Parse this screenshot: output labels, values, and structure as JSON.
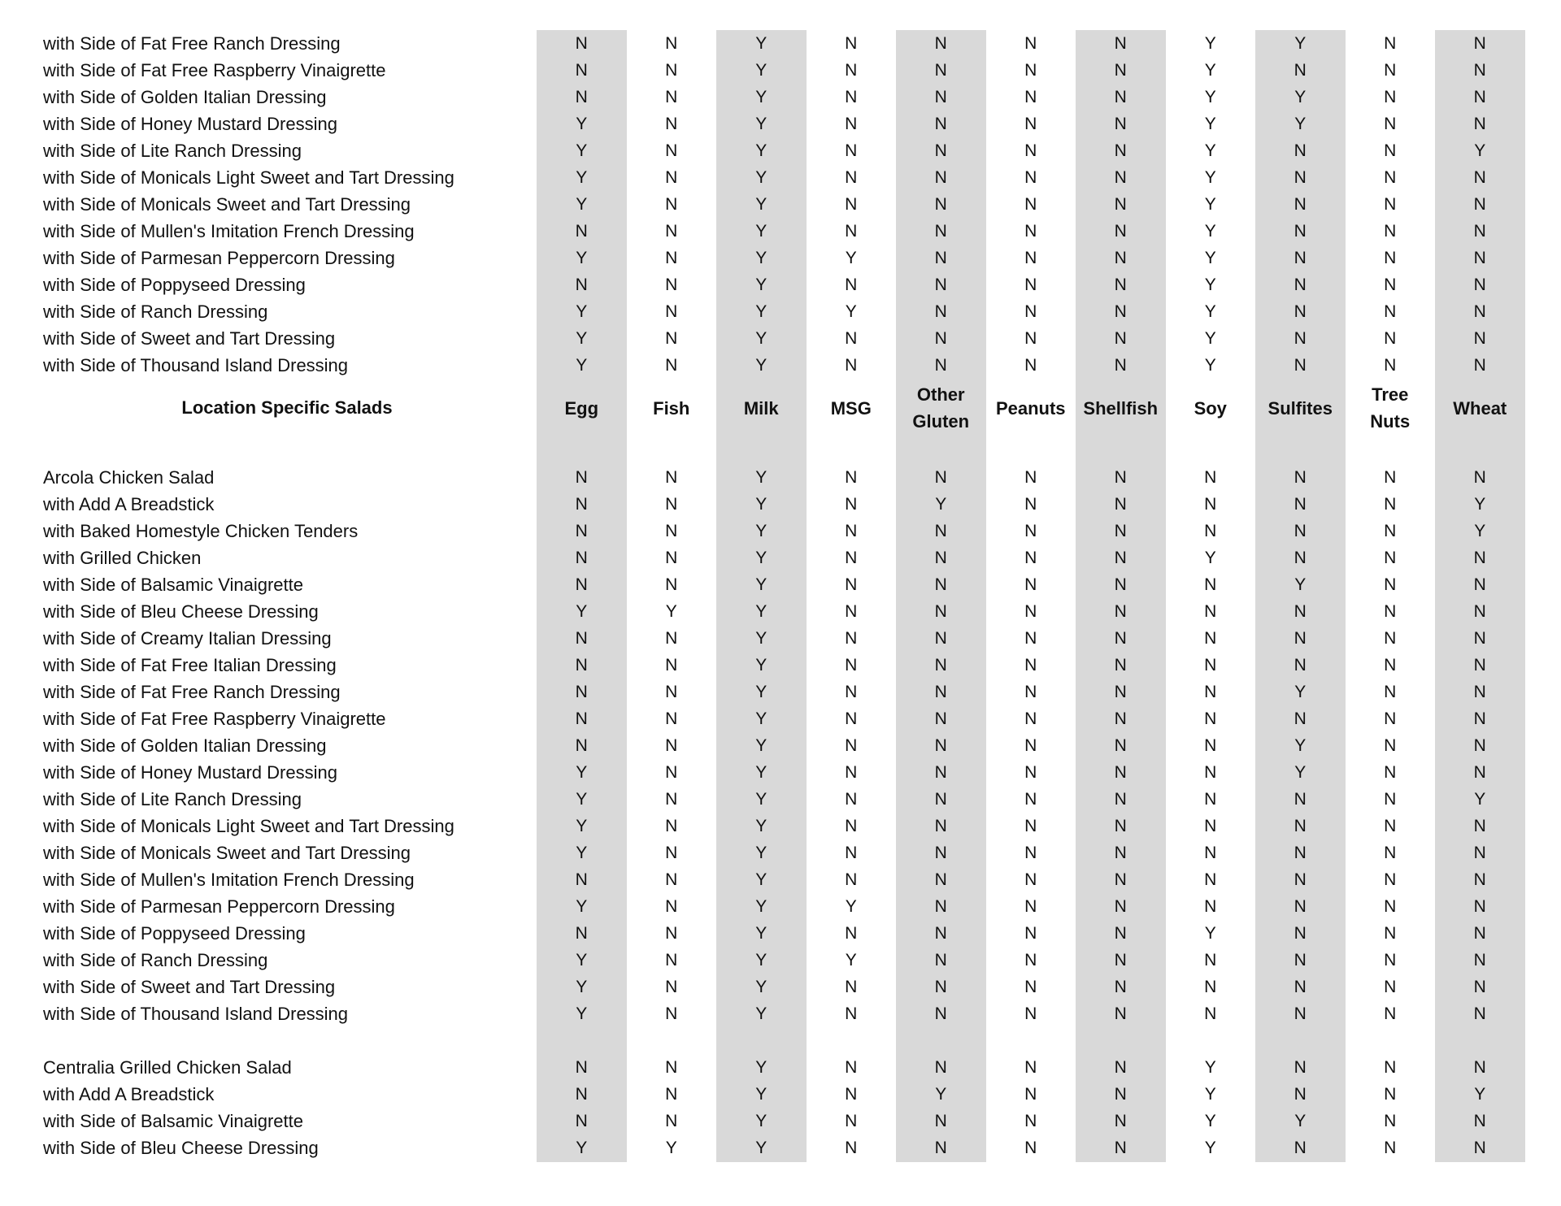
{
  "shaded_color": "#d9d9d9",
  "columns": [
    "Egg",
    "Fish",
    "Milk",
    "MSG",
    "Other\nGluten",
    "Peanuts",
    "Shellfish",
    "Soy",
    "Sulfites",
    "Tree\nNuts",
    "Wheat"
  ],
  "rows": [
    {
      "label": "with Side of Fat Free Ranch Dressing",
      "vals": [
        "N",
        "N",
        "Y",
        "N",
        "N",
        "N",
        "N",
        "Y",
        "Y",
        "N",
        "N"
      ]
    },
    {
      "label": "with Side of Fat Free Raspberry Vinaigrette",
      "vals": [
        "N",
        "N",
        "Y",
        "N",
        "N",
        "N",
        "N",
        "Y",
        "N",
        "N",
        "N"
      ]
    },
    {
      "label": "with Side of Golden Italian Dressing",
      "vals": [
        "N",
        "N",
        "Y",
        "N",
        "N",
        "N",
        "N",
        "Y",
        "Y",
        "N",
        "N"
      ]
    },
    {
      "label": "with Side of Honey Mustard Dressing",
      "vals": [
        "Y",
        "N",
        "Y",
        "N",
        "N",
        "N",
        "N",
        "Y",
        "Y",
        "N",
        "N"
      ]
    },
    {
      "label": "with Side of Lite Ranch Dressing",
      "vals": [
        "Y",
        "N",
        "Y",
        "N",
        "N",
        "N",
        "N",
        "Y",
        "N",
        "N",
        "Y"
      ]
    },
    {
      "label": "with Side of Monicals Light Sweet and Tart Dressing",
      "vals": [
        "Y",
        "N",
        "Y",
        "N",
        "N",
        "N",
        "N",
        "Y",
        "N",
        "N",
        "N"
      ]
    },
    {
      "label": "with Side of Monicals Sweet and Tart Dressing",
      "vals": [
        "Y",
        "N",
        "Y",
        "N",
        "N",
        "N",
        "N",
        "Y",
        "N",
        "N",
        "N"
      ]
    },
    {
      "label": "with Side of Mullen's Imitation French Dressing",
      "vals": [
        "N",
        "N",
        "Y",
        "N",
        "N",
        "N",
        "N",
        "Y",
        "N",
        "N",
        "N"
      ]
    },
    {
      "label": "with Side of Parmesan Peppercorn Dressing",
      "vals": [
        "Y",
        "N",
        "Y",
        "Y",
        "N",
        "N",
        "N",
        "Y",
        "N",
        "N",
        "N"
      ]
    },
    {
      "label": "with Side of Poppyseed Dressing",
      "vals": [
        "N",
        "N",
        "Y",
        "N",
        "N",
        "N",
        "N",
        "Y",
        "N",
        "N",
        "N"
      ]
    },
    {
      "label": "with Side of Ranch Dressing",
      "vals": [
        "Y",
        "N",
        "Y",
        "Y",
        "N",
        "N",
        "N",
        "Y",
        "N",
        "N",
        "N"
      ]
    },
    {
      "label": "with Side of Sweet and Tart Dressing",
      "vals": [
        "Y",
        "N",
        "Y",
        "N",
        "N",
        "N",
        "N",
        "Y",
        "N",
        "N",
        "N"
      ]
    },
    {
      "label": "with Side of Thousand Island Dressing",
      "vals": [
        "Y",
        "N",
        "Y",
        "N",
        "N",
        "N",
        "N",
        "Y",
        "N",
        "N",
        "N"
      ]
    },
    {
      "type": "header",
      "label": "Location Specific Salads"
    },
    {
      "type": "blank"
    },
    {
      "label": "Arcola Chicken Salad",
      "vals": [
        "N",
        "N",
        "Y",
        "N",
        "N",
        "N",
        "N",
        "N",
        "N",
        "N",
        "N"
      ]
    },
    {
      "label": "with Add A Breadstick",
      "vals": [
        "N",
        "N",
        "Y",
        "N",
        "Y",
        "N",
        "N",
        "N",
        "N",
        "N",
        "Y"
      ]
    },
    {
      "label": "with Baked Homestyle Chicken Tenders",
      "vals": [
        "N",
        "N",
        "Y",
        "N",
        "N",
        "N",
        "N",
        "N",
        "N",
        "N",
        "Y"
      ]
    },
    {
      "label": "with Grilled Chicken",
      "vals": [
        "N",
        "N",
        "Y",
        "N",
        "N",
        "N",
        "N",
        "Y",
        "N",
        "N",
        "N"
      ]
    },
    {
      "label": "with Side of Balsamic Vinaigrette",
      "vals": [
        "N",
        "N",
        "Y",
        "N",
        "N",
        "N",
        "N",
        "N",
        "Y",
        "N",
        "N"
      ]
    },
    {
      "label": "with Side of Bleu Cheese Dressing",
      "vals": [
        "Y",
        "Y",
        "Y",
        "N",
        "N",
        "N",
        "N",
        "N",
        "N",
        "N",
        "N"
      ]
    },
    {
      "label": "with Side of Creamy Italian Dressing",
      "vals": [
        "N",
        "N",
        "Y",
        "N",
        "N",
        "N",
        "N",
        "N",
        "N",
        "N",
        "N"
      ]
    },
    {
      "label": "with Side of Fat Free Italian Dressing",
      "vals": [
        "N",
        "N",
        "Y",
        "N",
        "N",
        "N",
        "N",
        "N",
        "N",
        "N",
        "N"
      ]
    },
    {
      "label": "with Side of Fat Free Ranch Dressing",
      "vals": [
        "N",
        "N",
        "Y",
        "N",
        "N",
        "N",
        "N",
        "N",
        "Y",
        "N",
        "N"
      ]
    },
    {
      "label": "with Side of Fat Free Raspberry Vinaigrette",
      "vals": [
        "N",
        "N",
        "Y",
        "N",
        "N",
        "N",
        "N",
        "N",
        "N",
        "N",
        "N"
      ]
    },
    {
      "label": "with Side of Golden Italian Dressing",
      "vals": [
        "N",
        "N",
        "Y",
        "N",
        "N",
        "N",
        "N",
        "N",
        "Y",
        "N",
        "N"
      ]
    },
    {
      "label": "with Side of Honey Mustard Dressing",
      "vals": [
        "Y",
        "N",
        "Y",
        "N",
        "N",
        "N",
        "N",
        "N",
        "Y",
        "N",
        "N"
      ]
    },
    {
      "label": "with Side of Lite Ranch Dressing",
      "vals": [
        "Y",
        "N",
        "Y",
        "N",
        "N",
        "N",
        "N",
        "N",
        "N",
        "N",
        "Y"
      ]
    },
    {
      "label": "with Side of Monicals Light Sweet and Tart Dressing",
      "vals": [
        "Y",
        "N",
        "Y",
        "N",
        "N",
        "N",
        "N",
        "N",
        "N",
        "N",
        "N"
      ]
    },
    {
      "label": "with Side of Monicals Sweet and Tart Dressing",
      "vals": [
        "Y",
        "N",
        "Y",
        "N",
        "N",
        "N",
        "N",
        "N",
        "N",
        "N",
        "N"
      ]
    },
    {
      "label": "with Side of Mullen's Imitation French Dressing",
      "vals": [
        "N",
        "N",
        "Y",
        "N",
        "N",
        "N",
        "N",
        "N",
        "N",
        "N",
        "N"
      ]
    },
    {
      "label": "with Side of Parmesan Peppercorn Dressing",
      "vals": [
        "Y",
        "N",
        "Y",
        "Y",
        "N",
        "N",
        "N",
        "N",
        "N",
        "N",
        "N"
      ]
    },
    {
      "label": "with Side of Poppyseed Dressing",
      "vals": [
        "N",
        "N",
        "Y",
        "N",
        "N",
        "N",
        "N",
        "Y",
        "N",
        "N",
        "N"
      ]
    },
    {
      "label": "with Side of Ranch Dressing",
      "vals": [
        "Y",
        "N",
        "Y",
        "Y",
        "N",
        "N",
        "N",
        "N",
        "N",
        "N",
        "N"
      ]
    },
    {
      "label": "with Side of Sweet and Tart Dressing",
      "vals": [
        "Y",
        "N",
        "Y",
        "N",
        "N",
        "N",
        "N",
        "N",
        "N",
        "N",
        "N"
      ]
    },
    {
      "label": "with Side of Thousand Island Dressing",
      "vals": [
        "Y",
        "N",
        "Y",
        "N",
        "N",
        "N",
        "N",
        "N",
        "N",
        "N",
        "N"
      ]
    },
    {
      "type": "blank"
    },
    {
      "label": "Centralia Grilled Chicken Salad",
      "vals": [
        "N",
        "N",
        "Y",
        "N",
        "N",
        "N",
        "N",
        "Y",
        "N",
        "N",
        "N"
      ]
    },
    {
      "label": "with Add A Breadstick",
      "vals": [
        "N",
        "N",
        "Y",
        "N",
        "Y",
        "N",
        "N",
        "Y",
        "N",
        "N",
        "Y"
      ]
    },
    {
      "label": "with Side of Balsamic Vinaigrette",
      "vals": [
        "N",
        "N",
        "Y",
        "N",
        "N",
        "N",
        "N",
        "Y",
        "Y",
        "N",
        "N"
      ]
    },
    {
      "label": "with Side of Bleu Cheese Dressing",
      "vals": [
        "Y",
        "Y",
        "Y",
        "N",
        "N",
        "N",
        "N",
        "Y",
        "N",
        "N",
        "N"
      ]
    }
  ]
}
